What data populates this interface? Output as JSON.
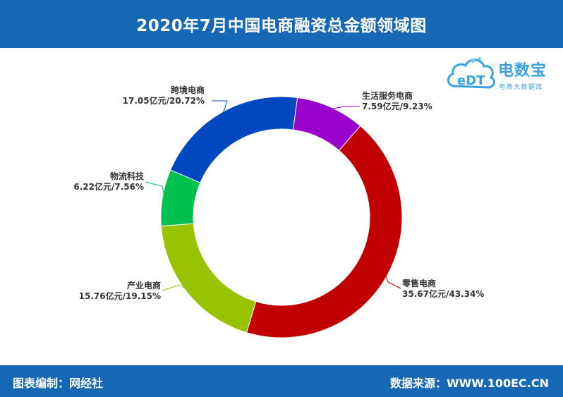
{
  "title": "2020年7月中国电商融资总金额领域图",
  "footer": {
    "left": "图表编制：网经社",
    "right": "数据来源：WWW.100EC.CN"
  },
  "logo": {
    "mark": "eDT",
    "name": "电数宝",
    "subtitle": "电商大数据库",
    "icon": "cloud-logo-icon"
  },
  "chart_data": {
    "type": "pie",
    "variant": "donut",
    "unit": "亿元",
    "slices": [
      {
        "name": "跨境电商",
        "value": 17.05,
        "percent": 20.72,
        "label": "17.05亿元/20.72%",
        "color": "#0048c0"
      },
      {
        "name": "生活服务电商",
        "value": 7.59,
        "percent": 9.23,
        "label": "7.59亿元/9.23%",
        "color": "#9900cc"
      },
      {
        "name": "零售电商",
        "value": 35.67,
        "percent": 43.34,
        "label": "35.67亿元/43.34%",
        "color": "#c00000"
      },
      {
        "name": "产业电商",
        "value": 15.76,
        "percent": 19.15,
        "label": "15.76亿元/19.15%",
        "color": "#99c200"
      },
      {
        "name": "物流科技",
        "value": 6.22,
        "percent": 7.56,
        "label": "6.22亿元/7.56%",
        "color": "#00c050"
      }
    ]
  }
}
